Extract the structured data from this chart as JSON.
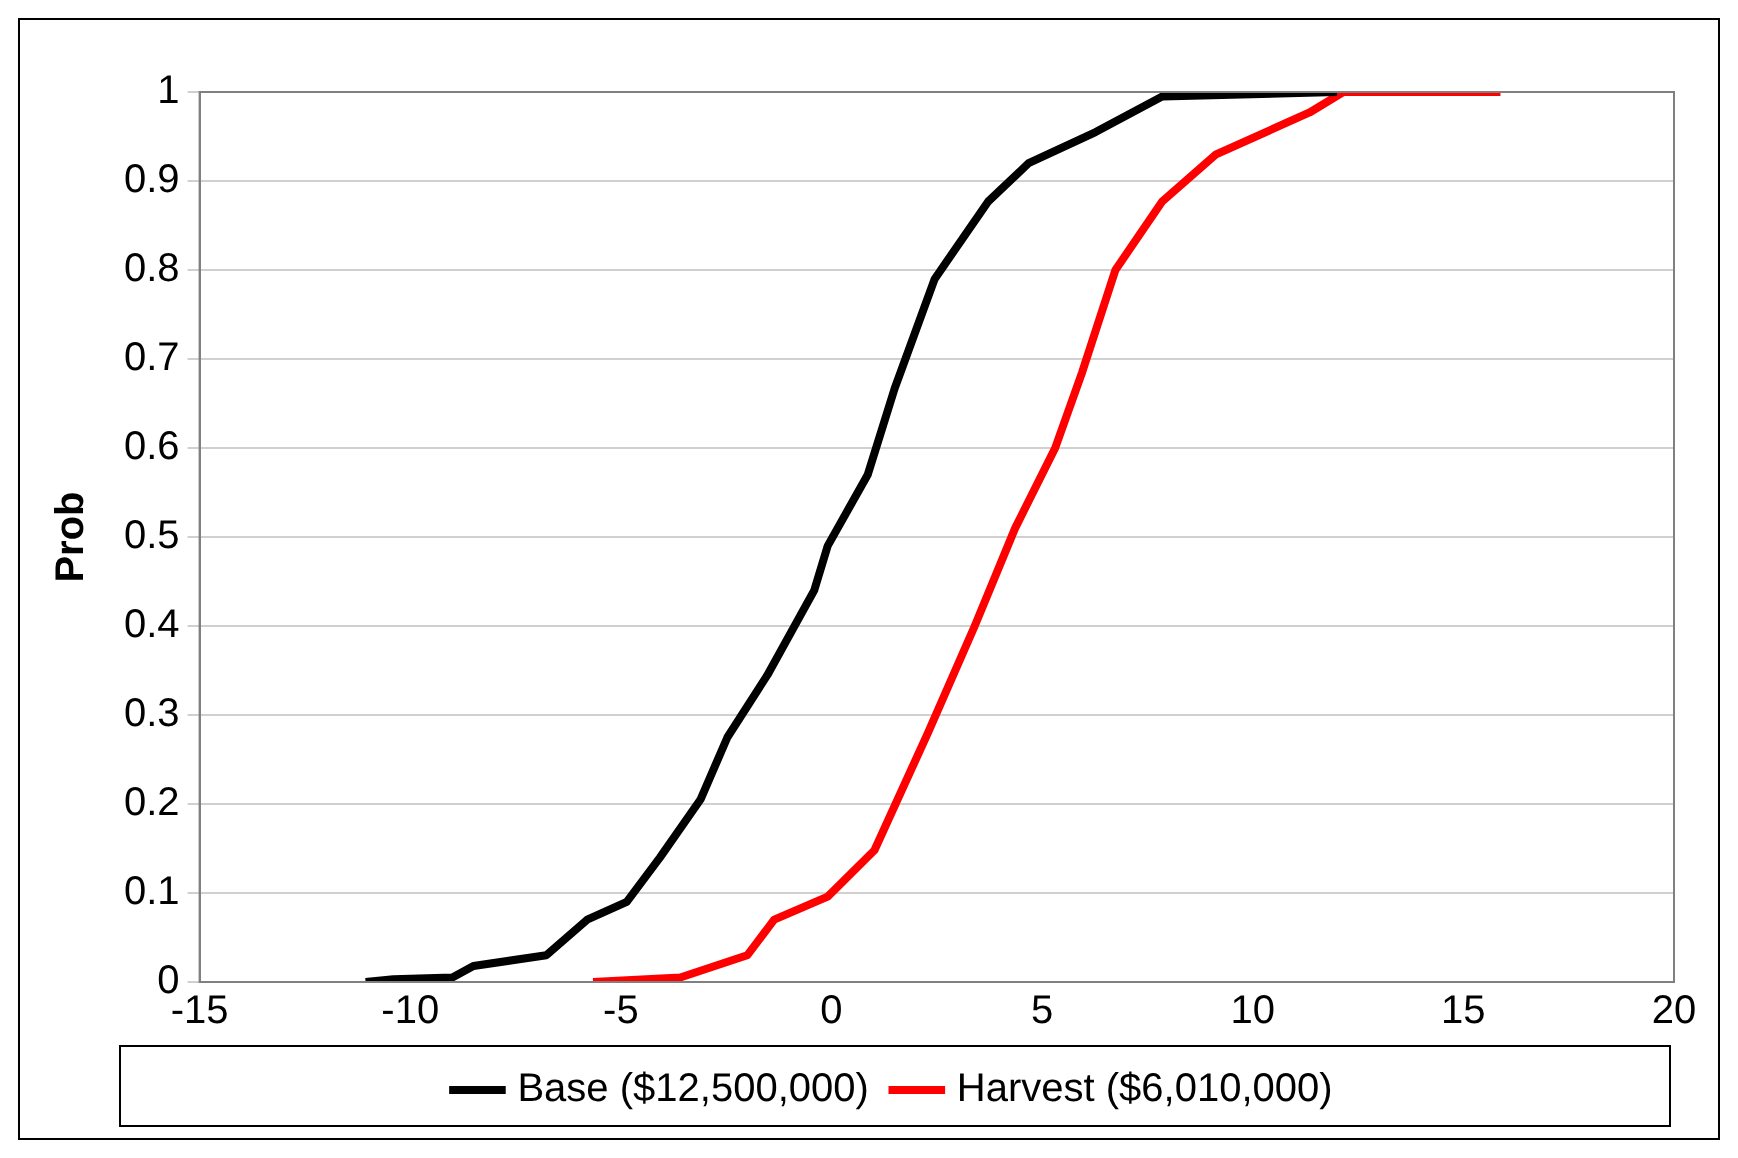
{
  "chart_data": {
    "type": "line",
    "ylabel": "Prob",
    "xlim": [
      -15,
      20
    ],
    "xticks": [
      -15,
      -10,
      -5,
      0,
      5,
      10,
      15,
      20
    ],
    "ylim": [
      0,
      1
    ],
    "yticks": [
      0,
      0.1,
      0.2,
      0.3,
      0.4,
      0.5,
      0.6,
      0.7,
      0.8,
      0.9,
      1
    ],
    "grid": "y",
    "legend": "bottom",
    "marker": "none",
    "line_style": "solid",
    "series": [
      {
        "name": "Base ($12,500,000)",
        "color": "#000000",
        "x": [
          -11.06,
          -10.4,
          -9.0,
          -8.5,
          -6.77,
          -5.8,
          -4.86,
          -4.07,
          -3.11,
          -2.47,
          -1.52,
          -0.41,
          -0.09,
          0.86,
          1.5,
          2.45,
          3.72,
          4.68,
          6.27,
          7.85,
          12.0
        ],
        "values": [
          0,
          0.003,
          0.005,
          0.018,
          0.03,
          0.07,
          0.09,
          0.14,
          0.205,
          0.275,
          0.345,
          0.44,
          0.49,
          0.57,
          0.667,
          0.79,
          0.877,
          0.92,
          0.955,
          0.995,
          1
        ]
      },
      {
        "name": "Harvest ($6,010,000)",
        "color": "#ff0000",
        "x": [
          -5.66,
          -3.59,
          -2.0,
          -1.36,
          -0.09,
          1.02,
          2.29,
          3.4,
          4.36,
          5.31,
          5.95,
          6.74,
          7.85,
          9.13,
          11.35,
          12.15,
          15.88
        ],
        "values": [
          0,
          0.005,
          0.03,
          0.07,
          0.096,
          0.148,
          0.28,
          0.4,
          0.51,
          0.6,
          0.685,
          0.8,
          0.877,
          0.93,
          0.977,
          1,
          1
        ]
      }
    ]
  }
}
